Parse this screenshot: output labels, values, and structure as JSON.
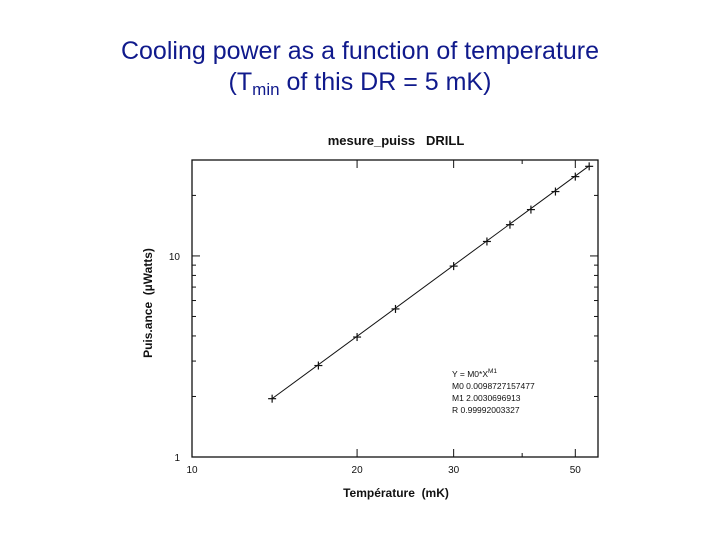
{
  "slide": {
    "title_line1": "Cooling power as a function of temperature",
    "title_line2_pre": "(T",
    "title_line2_sub": "min",
    "title_line2_post": " of this DR = 5 mK)"
  },
  "chart_data": {
    "type": "scatter",
    "title": "mesure_puiss   DRILL",
    "xlabel": "Température  (mK)",
    "ylabel": "Puis.ance  (µWatts)",
    "x_scale": "log",
    "y_scale": "log",
    "xlim": [
      10,
      55
    ],
    "ylim": [
      1,
      30
    ],
    "x_ticks": [
      10,
      20,
      30,
      50
    ],
    "x_tick_labels": [
      "10",
      "20",
      "30",
      "50"
    ],
    "y_ticks": [
      1,
      10
    ],
    "y_tick_labels": [
      "1",
      "10"
    ],
    "grid": false,
    "marker": "+",
    "fit_line": true,
    "annotations": [
      "Y = M0*X^M1",
      "M0 0.0098727157477",
      "M1 2.0030696913",
      "R 0.99992003327"
    ],
    "fit": {
      "M0": 0.0098727157477,
      "M1": 2.0030696913
    },
    "x": [
      14,
      17,
      20,
      23.5,
      30,
      34.5,
      38,
      41.5,
      46,
      50,
      53
    ],
    "y": [
      1.95,
      2.85,
      3.95,
      5.45,
      8.9,
      11.8,
      14.3,
      17.0,
      20.9,
      24.8,
      27.9
    ]
  }
}
